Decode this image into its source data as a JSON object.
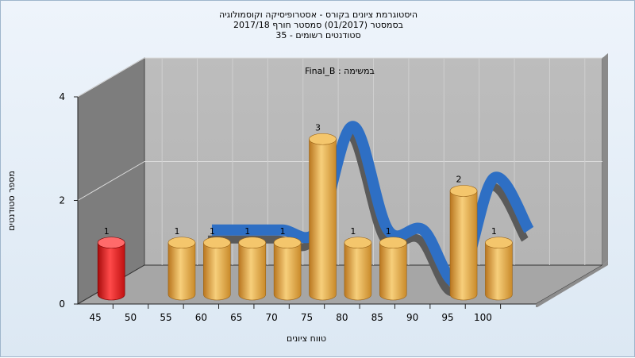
{
  "chart_data": {
    "type": "bar",
    "title": [
      "היסטוגרמת ציונים בקורס - אסטרופיסיקה וקוסמולוגיה",
      "בסמסטר  (01/2017)  סמסטר חורף 2017/18",
      "סטודנטים רשומים - 35"
    ],
    "annotation": "במשימה : Final_B",
    "xlabel": "טווח ציונים",
    "ylabel": "מספר סטודנטים",
    "ylim": [
      0,
      4
    ],
    "y_ticks": [
      "0",
      "2",
      "4"
    ],
    "categories": [
      "45",
      "50",
      "55",
      "60",
      "65",
      "70",
      "75",
      "80",
      "85",
      "90",
      "95",
      "100"
    ],
    "values": [
      1,
      0,
      1,
      1,
      1,
      1,
      3,
      1,
      1,
      0,
      2,
      1
    ],
    "data_labels": [
      "1",
      "",
      "1",
      "1",
      "1",
      "1",
      "3",
      "1",
      "1",
      "",
      "2",
      "1"
    ],
    "highlight": {
      "category": "45",
      "color": "#e01818"
    },
    "bar_color": "#e8a53c",
    "curve_color": "#2e6fc4",
    "grid": true,
    "three_d": true
  }
}
